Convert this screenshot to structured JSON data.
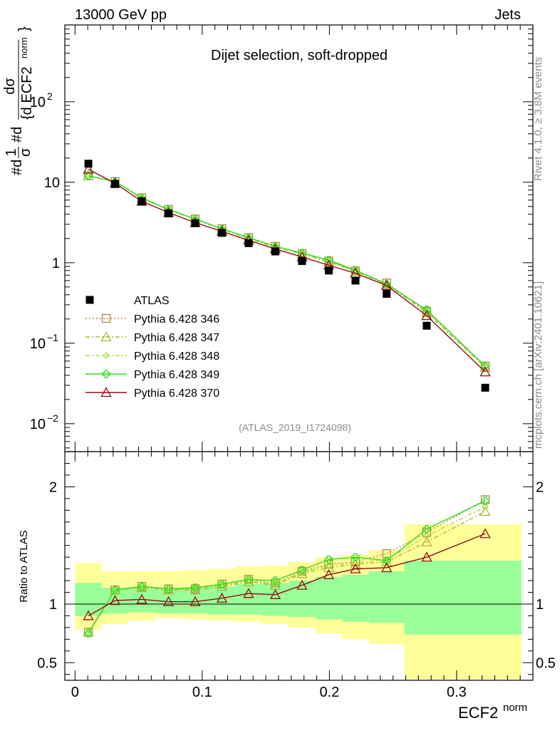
{
  "header": {
    "left": "13000 GeV pp",
    "right": "Jets"
  },
  "side_labels": {
    "rivet": "Rivet 4.1.0, ≥ 3.8M events",
    "mcplots": "mcplots.cern.ch [arXiv:2401.10621]"
  },
  "chart_data": [
    {
      "type": "line",
      "title": "Dijet selection, soft-dropped",
      "analysis": "(ATLAS_2019_I1724098)",
      "ylabel": {
        "prefix": "#d",
        "frac1_num": "1",
        "frac1_den": "σ",
        "mid": "#d",
        "frac2_num": "dσ",
        "frac2_den": "{d ECF2",
        "sup": "norm",
        "close": "}"
      },
      "yscale": "log",
      "ylim": [
        0.0045,
        900
      ],
      "xlim": [
        -0.008,
        0.36
      ],
      "ytick_labels": [
        {
          "value": 0.01,
          "base": "10",
          "exp": "−2"
        },
        {
          "value": 0.1,
          "base": "10",
          "exp": "−1"
        },
        {
          "value": 1,
          "base": "1",
          "exp": ""
        },
        {
          "value": 10,
          "base": "10",
          "exp": ""
        },
        {
          "value": 100,
          "base": "10",
          "exp": "2"
        }
      ],
      "x": [
        0.0105,
        0.0315,
        0.0525,
        0.0735,
        0.0945,
        0.1155,
        0.1365,
        0.1575,
        0.1785,
        0.1995,
        0.2205,
        0.245,
        0.2765,
        0.3225
      ],
      "atlas": [
        17.0,
        9.5,
        5.8,
        4.1,
        3.1,
        2.35,
        1.75,
        1.38,
        1.05,
        0.8,
        0.6,
        0.41,
        0.165,
        0.028
      ],
      "series": [
        {
          "name": "Pythia 6.428 346",
          "color": "#b8864a",
          "dash": "2,3",
          "marker": "square",
          "values": [
            12.0,
            10.2,
            6.4,
            4.6,
            3.5,
            2.65,
            2.05,
            1.6,
            1.3,
            1.05,
            0.79,
            0.56,
            0.25,
            0.052
          ]
        },
        {
          "name": "Pythia 6.428 347",
          "color": "#a8b83a",
          "dash": "6,3,2,3",
          "marker": "triangle",
          "values": [
            12.0,
            10.1,
            6.3,
            4.5,
            3.45,
            2.6,
            2.0,
            1.55,
            1.28,
            1.02,
            0.78,
            0.54,
            0.24,
            0.05
          ]
        },
        {
          "name": "Pythia 6.428 348",
          "color": "#a8e040",
          "dash": "6,3,2,3",
          "marker": "diamond",
          "values": [
            12.0,
            10.15,
            6.35,
            4.55,
            3.45,
            2.62,
            2.02,
            1.58,
            1.3,
            1.05,
            0.8,
            0.55,
            0.25,
            0.051
          ]
        },
        {
          "name": "Pythia 6.428 349",
          "color": "#33dd22",
          "dash": "",
          "marker": "plus",
          "values": [
            12.0,
            10.25,
            6.4,
            4.6,
            3.5,
            2.65,
            2.05,
            1.6,
            1.32,
            1.08,
            0.81,
            0.54,
            0.26,
            0.052
          ]
        },
        {
          "name": "Pythia 6.428 370",
          "color": "#8b1010",
          "dash": "",
          "marker": "triangle",
          "values": [
            14.5,
            9.7,
            5.8,
            4.2,
            3.15,
            2.45,
            1.9,
            1.48,
            1.18,
            0.93,
            0.74,
            0.52,
            0.22,
            0.044
          ]
        }
      ],
      "legend": {
        "atlas_label": "ATLAS",
        "placement": "lower-left"
      }
    },
    {
      "type": "line",
      "ylabel": "Ratio to ATLAS",
      "xlabel": {
        "base": "ECF2",
        "sup": "norm"
      },
      "ylim": [
        0.35,
        2.3
      ],
      "ytick_labels": [
        {
          "value": 0.5,
          "label": "0.5"
        },
        {
          "value": 1,
          "label": "1"
        },
        {
          "value": 2,
          "label": "2"
        }
      ],
      "xtick_labels": [
        {
          "value": 0,
          "label": "0"
        },
        {
          "value": 0.1,
          "label": "0.1"
        },
        {
          "value": 0.2,
          "label": "0.2"
        },
        {
          "value": 0.3,
          "label": "0.3"
        }
      ],
      "bin_edges": [
        0.0,
        0.021,
        0.042,
        0.063,
        0.084,
        0.105,
        0.126,
        0.147,
        0.168,
        0.189,
        0.21,
        0.231,
        0.259,
        0.294,
        0.351
      ],
      "band_inner": [
        [
          0.9,
          1.18
        ],
        [
          0.92,
          1.14
        ],
        [
          0.93,
          1.13
        ],
        [
          0.92,
          1.13
        ],
        [
          0.92,
          1.14
        ],
        [
          0.91,
          1.15
        ],
        [
          0.91,
          1.17
        ],
        [
          0.9,
          1.18
        ],
        [
          0.89,
          1.2
        ],
        [
          0.87,
          1.23
        ],
        [
          0.85,
          1.25
        ],
        [
          0.84,
          1.28
        ],
        [
          0.74,
          1.37
        ],
        [
          0.74,
          1.37
        ]
      ],
      "band_outer": [
        [
          0.78,
          1.35
        ],
        [
          0.83,
          1.28
        ],
        [
          0.86,
          1.28
        ],
        [
          0.88,
          1.28
        ],
        [
          0.87,
          1.29
        ],
        [
          0.86,
          1.3
        ],
        [
          0.85,
          1.32
        ],
        [
          0.83,
          1.33
        ],
        [
          0.8,
          1.36
        ],
        [
          0.75,
          1.4
        ],
        [
          0.7,
          1.42
        ],
        [
          0.66,
          1.46
        ],
        [
          0.36,
          1.68
        ],
        [
          0.36,
          1.68
        ]
      ],
      "series_ratio": [
        {
          "name": "Pythia 6.428 346",
          "values": [
            0.76,
            1.12,
            1.15,
            1.13,
            1.13,
            1.17,
            1.21,
            1.18,
            1.28,
            1.34,
            1.36,
            1.43,
            1.61,
            1.89
          ]
        },
        {
          "name": "Pythia 6.428 347",
          "values": [
            0.76,
            1.12,
            1.14,
            1.12,
            1.12,
            1.15,
            1.19,
            1.16,
            1.26,
            1.31,
            1.34,
            1.36,
            1.53,
            1.79
          ]
        },
        {
          "name": "Pythia 6.428 348",
          "values": [
            0.76,
            1.12,
            1.15,
            1.13,
            1.13,
            1.16,
            1.2,
            1.17,
            1.27,
            1.33,
            1.35,
            1.38,
            1.58,
            1.83
          ]
        },
        {
          "name": "Pythia 6.428 349",
          "values": [
            0.75,
            1.12,
            1.15,
            1.13,
            1.14,
            1.17,
            1.21,
            1.2,
            1.29,
            1.38,
            1.4,
            1.37,
            1.64,
            1.88
          ]
        },
        {
          "name": "Pythia 6.428 370",
          "values": [
            0.9,
            1.03,
            1.04,
            1.02,
            1.02,
            1.05,
            1.09,
            1.08,
            1.16,
            1.25,
            1.3,
            1.31,
            1.4,
            1.6
          ]
        }
      ]
    }
  ]
}
